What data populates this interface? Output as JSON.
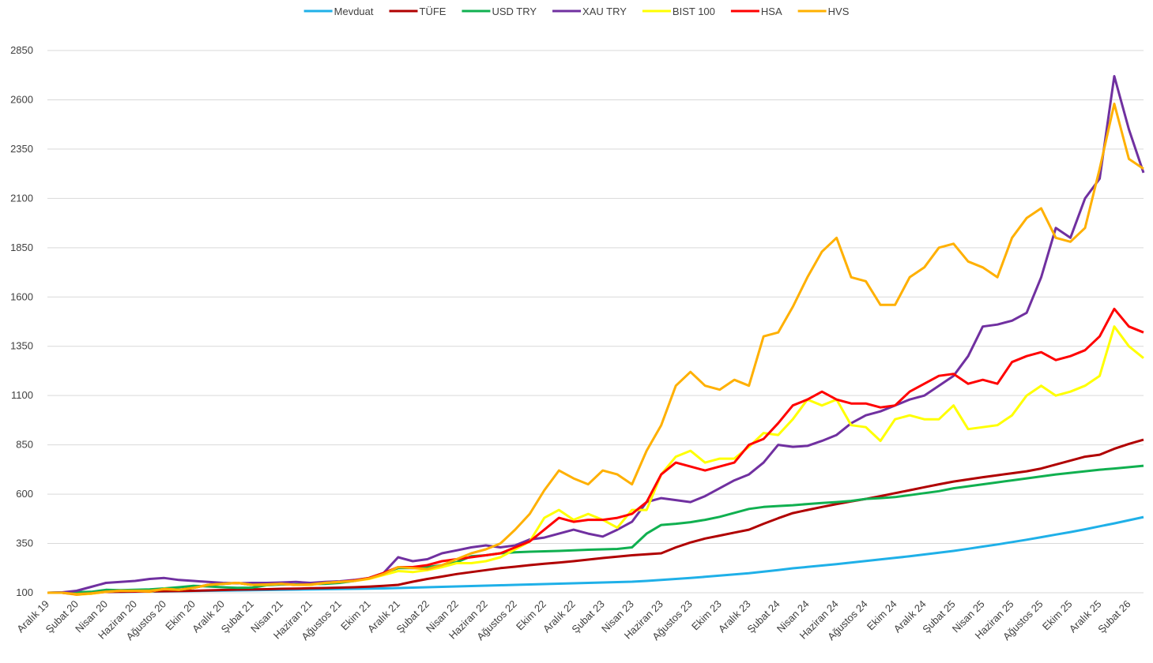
{
  "chart_data": {
    "type": "line",
    "categories": [
      "Aralık 19",
      null,
      "Şubat 20",
      null,
      "Nisan 20",
      null,
      "Haziran 20",
      null,
      "Ağustos 20",
      null,
      "Ekim 20",
      null,
      "Aralık 20",
      null,
      "Şubat 21",
      null,
      "Nisan 21",
      null,
      "Haziran 21",
      null,
      "Ağustos 21",
      null,
      "Ekim 21",
      null,
      "Aralık 21",
      null,
      "Şubat 22",
      null,
      "Nisan 22",
      null,
      "Haziran 22",
      null,
      "Ağustos 22",
      null,
      "Ekim 22",
      null,
      "Aralık 22",
      null,
      "Şubat 23",
      null,
      "Nisan 23",
      null,
      "Haziran 23",
      null,
      "Ağustos 23",
      null,
      "Ekim 23",
      null,
      "Aralık 23",
      null,
      "Şubat 24",
      null,
      "Nisan 24",
      null,
      "Haziran 24",
      null,
      "Ağustos 24",
      null,
      "Ekim 24",
      null,
      "Aralık 24",
      null,
      "Şubat 25",
      null,
      "Nisan 25",
      null,
      "Haziran 25",
      null,
      "Ağustos 25",
      null,
      "Ekim 25",
      null,
      "Aralık 25",
      null,
      "Şubat 26",
      null
    ],
    "series": [
      {
        "name": "Mevduat",
        "color": "#1fb0e8",
        "values": [
          100,
          101,
          102,
          103,
          104,
          104,
          105,
          106,
          107,
          108,
          109,
          110,
          111,
          112,
          113,
          114,
          115,
          116,
          117,
          118,
          119,
          120,
          121,
          122,
          124,
          126,
          128,
          130,
          132,
          134,
          136,
          138,
          140,
          142,
          144,
          146,
          148,
          150,
          152,
          154,
          156,
          160,
          165,
          170,
          175,
          181,
          187,
          193,
          199,
          207,
          215,
          224,
          231,
          238,
          245,
          253,
          261,
          269,
          277,
          285,
          294,
          303,
          312,
          323,
          334,
          345,
          357,
          369,
          382,
          395,
          408,
          422,
          437,
          452,
          468,
          484
        ]
      },
      {
        "name": "TÜFE",
        "color": "#b00000",
        "values": [
          100,
          101,
          102,
          103,
          104,
          105,
          106,
          107,
          108,
          109,
          110,
          112,
          114,
          116,
          117,
          118,
          120,
          121,
          123,
          124,
          126,
          128,
          131,
          135,
          140,
          156,
          170,
          182,
          195,
          205,
          215,
          225,
          232,
          240,
          247,
          253,
          260,
          268,
          276,
          283,
          290,
          295,
          300,
          330,
          355,
          375,
          390,
          405,
          420,
          450,
          478,
          504,
          520,
          535,
          550,
          563,
          576,
          590,
          605,
          620,
          635,
          650,
          664,
          675,
          686,
          696,
          706,
          716,
          730,
          750,
          770,
          790,
          800,
          830,
          855,
          876
        ]
      },
      {
        "name": "USD TRY",
        "color": "#10b050",
        "values": [
          100,
          101,
          103,
          105,
          115,
          113,
          115,
          117,
          122,
          128,
          135,
          132,
          128,
          125,
          126,
          138,
          142,
          142,
          144,
          145,
          150,
          160,
          175,
          200,
          225,
          225,
          230,
          240,
          255,
          285,
          290,
          300,
          305,
          308,
          310,
          312,
          315,
          318,
          320,
          322,
          330,
          400,
          444,
          450,
          458,
          470,
          485,
          505,
          525,
          535,
          540,
          544,
          550,
          555,
          560,
          566,
          576,
          580,
          585,
          595,
          605,
          615,
          630,
          640,
          650,
          660,
          670,
          680,
          690,
          700,
          708,
          716,
          724,
          730,
          737,
          744
        ]
      },
      {
        "name": "XAU TRY",
        "color": "#7030a0",
        "values": [
          100,
          102,
          110,
          130,
          150,
          155,
          160,
          170,
          175,
          165,
          160,
          155,
          150,
          148,
          150,
          150,
          152,
          155,
          150,
          155,
          158,
          165,
          175,
          200,
          280,
          260,
          270,
          300,
          315,
          330,
          340,
          330,
          340,
          370,
          380,
          400,
          420,
          400,
          385,
          420,
          460,
          560,
          580,
          570,
          560,
          590,
          630,
          670,
          700,
          760,
          850,
          840,
          845,
          870,
          900,
          960,
          1000,
          1020,
          1050,
          1080,
          1100,
          1150,
          1200,
          1300,
          1450,
          1460,
          1480,
          1520,
          1700,
          1950,
          1900,
          2100,
          2200,
          2720,
          2450,
          2230
        ]
      },
      {
        "name": "BIST 100",
        "color": "#ffff00",
        "values": [
          100,
          100,
          90,
          95,
          105,
          110,
          108,
          105,
          120,
          115,
          125,
          140,
          145,
          150,
          140,
          140,
          145,
          140,
          140,
          150,
          155,
          160,
          170,
          190,
          210,
          205,
          215,
          230,
          250,
          250,
          260,
          280,
          320,
          360,
          480,
          520,
          470,
          500,
          470,
          430,
          520,
          520,
          700,
          790,
          820,
          760,
          780,
          780,
          840,
          910,
          900,
          980,
          1080,
          1050,
          1080,
          950,
          940,
          870,
          980,
          1000,
          980,
          980,
          1050,
          930,
          940,
          950,
          1000,
          1100,
          1150,
          1100,
          1120,
          1150,
          1200,
          1450,
          1350,
          1290
        ]
      },
      {
        "name": "HSA",
        "color": "#ff0000",
        "values": [
          100,
          100,
          92,
          97,
          105,
          110,
          108,
          108,
          118,
          115,
          125,
          140,
          145,
          150,
          140,
          142,
          145,
          140,
          142,
          150,
          155,
          162,
          175,
          200,
          230,
          230,
          240,
          260,
          270,
          280,
          290,
          300,
          330,
          360,
          420,
          480,
          460,
          470,
          470,
          480,
          500,
          560,
          700,
          760,
          740,
          720,
          740,
          760,
          850,
          880,
          960,
          1050,
          1080,
          1120,
          1080,
          1060,
          1060,
          1040,
          1050,
          1120,
          1160,
          1200,
          1210,
          1160,
          1180,
          1160,
          1270,
          1300,
          1320,
          1280,
          1300,
          1330,
          1400,
          1540,
          1450,
          1420
        ]
      },
      {
        "name": "HVS",
        "color": "#ffb000",
        "values": [
          100,
          100,
          93,
          97,
          105,
          110,
          110,
          110,
          118,
          115,
          125,
          140,
          145,
          150,
          140,
          142,
          145,
          140,
          142,
          150,
          155,
          160,
          172,
          195,
          230,
          225,
          220,
          240,
          270,
          300,
          320,
          350,
          420,
          500,
          620,
          720,
          680,
          650,
          720,
          700,
          650,
          820,
          950,
          1150,
          1220,
          1150,
          1130,
          1180,
          1150,
          1400,
          1420,
          1550,
          1700,
          1830,
          1900,
          1700,
          1680,
          1560,
          1560,
          1700,
          1750,
          1850,
          1870,
          1780,
          1750,
          1700,
          1900,
          2000,
          2050,
          1900,
          1880,
          1950,
          2250,
          2580,
          2300,
          2250
        ]
      }
    ],
    "ylim": [
      100,
      2850
    ],
    "yticks": [
      100,
      350,
      600,
      850,
      1100,
      1350,
      1600,
      1850,
      2100,
      2350,
      2600,
      2850
    ],
    "grid": true,
    "legend": "top"
  }
}
